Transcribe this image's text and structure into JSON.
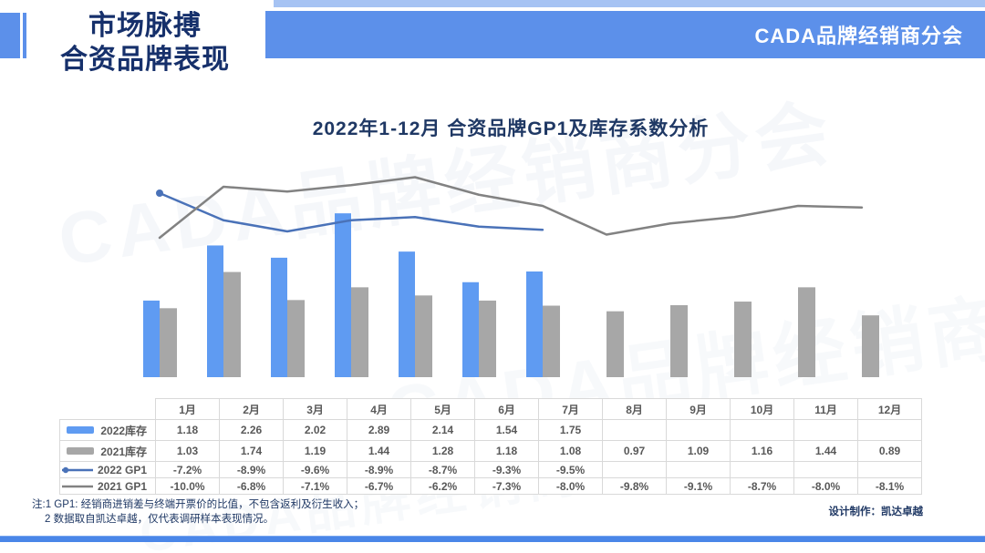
{
  "header": {
    "page_title_line1": "市场脉搏",
    "page_title_line2": "合资品牌表现",
    "banner_text": "CADA品牌经销商分会"
  },
  "chart_title": "2022年1-12月 合资品牌GP1及库存系数分析",
  "watermark_text": "CADA品牌经销商分会",
  "chart_data": {
    "type": "combo-bar-line",
    "title": "2022年1-12月 合资品牌GP1及库存系数分析",
    "categories": [
      "1月",
      "2月",
      "3月",
      "4月",
      "5月",
      "6月",
      "7月",
      "8月",
      "9月",
      "10月",
      "11月",
      "12月"
    ],
    "series": [
      {
        "name": "2022库存",
        "type": "bar",
        "color": "#5f9bf2",
        "values": [
          1.18,
          2.26,
          2.02,
          2.89,
          2.14,
          1.54,
          1.75,
          null,
          null,
          null,
          null,
          null
        ]
      },
      {
        "name": "2021库存",
        "type": "bar",
        "color": "#a7a7a7",
        "values": [
          1.03,
          1.74,
          1.19,
          1.44,
          1.28,
          1.18,
          1.08,
          0.97,
          1.09,
          1.16,
          1.44,
          0.89
        ]
      },
      {
        "name": "2022 GP1",
        "type": "line",
        "color": "#4a72b8",
        "marker_first_point": true,
        "values": [
          -7.2,
          -8.9,
          -9.6,
          -8.9,
          -8.7,
          -9.3,
          -9.5,
          null,
          null,
          null,
          null,
          null
        ]
      },
      {
        "name": "2021 GP1",
        "type": "line",
        "color": "#828282",
        "marker_first_point": false,
        "values": [
          -10.0,
          -6.8,
          -7.1,
          -6.7,
          -6.2,
          -7.3,
          -8.0,
          -9.8,
          -9.1,
          -8.7,
          -8.0,
          -8.1
        ]
      }
    ],
    "bar_axis_unit": "库存系数",
    "line_axis_unit": "GP1 %",
    "grid": false,
    "legend_position": "table-left-column"
  },
  "table": {
    "columns": [
      "1月",
      "2月",
      "3月",
      "4月",
      "5月",
      "6月",
      "7月",
      "8月",
      "9月",
      "10月",
      "11月",
      "12月"
    ],
    "rows": [
      {
        "label": "2022库存",
        "swatch": "bar",
        "swatch_color": "#5f9bf2",
        "cells": [
          "1.18",
          "2.26",
          "2.02",
          "2.89",
          "2.14",
          "1.54",
          "1.75",
          "",
          "",
          "",
          "",
          ""
        ]
      },
      {
        "label": "2021库存",
        "swatch": "bar",
        "swatch_color": "#a7a7a7",
        "cells": [
          "1.03",
          "1.74",
          "1.19",
          "1.44",
          "1.28",
          "1.18",
          "1.08",
          "0.97",
          "1.09",
          "1.16",
          "1.44",
          "0.89"
        ]
      },
      {
        "label": "2022 GP1",
        "swatch": "line-dot",
        "swatch_color": "#4a72b8",
        "cells": [
          "-7.2%",
          "-8.9%",
          "-9.6%",
          "-8.9%",
          "-8.7%",
          "-9.3%",
          "-9.5%",
          "",
          "",
          "",
          "",
          ""
        ]
      },
      {
        "label": "2021 GP1",
        "swatch": "line",
        "swatch_color": "#828282",
        "cells": [
          "-10.0%",
          "-6.8%",
          "-7.1%",
          "-6.7%",
          "-6.2%",
          "-7.3%",
          "-8.0%",
          "-9.8%",
          "-9.1%",
          "-8.7%",
          "-8.0%",
          "-8.1%"
        ]
      }
    ]
  },
  "notes": {
    "line1": "注:1 GP1: 经销商进销差与终端开票价的比值，不包含返利及衍生收入；",
    "line2": "2 数据取自凯达卓越，仅代表调研样本表现情况。"
  },
  "credit": "设计制作：凯达卓越",
  "colors": {
    "banner_blue": "#5c90ea",
    "strip_blue": "#a6c3f3",
    "title_navy": "#16306b",
    "chart_title_navy": "#1f3864",
    "bar_blue": "#5f9bf2",
    "bar_gray": "#a7a7a7",
    "line_blue": "#4a72b8",
    "line_gray": "#828282",
    "table_border": "#d9d9d9",
    "table_text": "#595959",
    "rule_blue": "#4a86e8"
  }
}
